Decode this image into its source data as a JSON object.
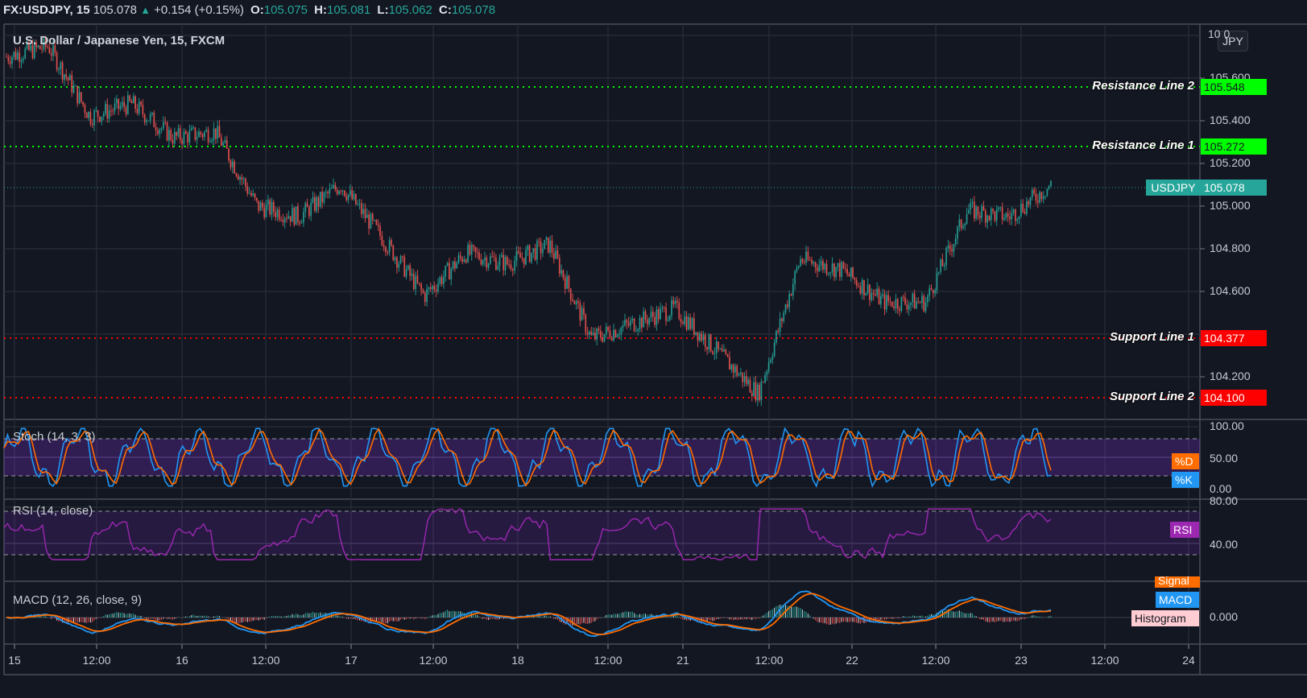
{
  "header": {
    "symbol": "FX:USDJPY, 15",
    "last": "105.078",
    "arrow": "▲",
    "change": "+0.154 (+0.15%)",
    "o_label": "O:",
    "o": "105.075",
    "h_label": "H:",
    "h": "105.081",
    "l_label": "L:",
    "l": "105.062",
    "c_label": "C:",
    "c": "105.078"
  },
  "main": {
    "title": "U.S. Dollar / Japanese Yen, 15, FXCM",
    "currency_button": "JPY",
    "price_ticks": [
      "105.600",
      "105.400",
      "105.200",
      "105.000",
      "104.800",
      "104.600",
      "104.200"
    ],
    "top_tick_partial": "10 0",
    "lines": {
      "r2": {
        "label": "Resistance Line 2",
        "value": "105.548",
        "color": "#00ff00"
      },
      "r1": {
        "label": "Resistance Line 1",
        "value": "105.272",
        "color": "#00ff00"
      },
      "s1": {
        "label": "Support Line 1",
        "value": "104.377",
        "color": "#ff0000"
      },
      "s2": {
        "label": "Support Line 2",
        "value": "104.100",
        "color": "#ff0000"
      }
    },
    "current": {
      "symbol": "USDJPY",
      "value": "105.078",
      "color": "#26a69a"
    }
  },
  "stoch": {
    "title": "Stoch (14, 3, 3)",
    "ticks": [
      "100.00",
      "50.00",
      "0.00"
    ],
    "d_label": "%D",
    "d_color": "#ff6d00",
    "k_label": "%K",
    "k_color": "#2196f3"
  },
  "rsi": {
    "title": "RSI (14, close)",
    "ticks": [
      "80.00",
      "40.00"
    ],
    "label": "RSI",
    "color": "#9c27b0"
  },
  "macd": {
    "title": "MACD (12, 26, close, 9)",
    "ticks": [
      "0.000"
    ],
    "signal_label": "Signal",
    "signal_color": "#ff6d00",
    "macd_label": "MACD",
    "macd_color": "#2196f3",
    "hist_label": "Histogram",
    "hist_color": "#ffcdd2"
  },
  "xaxis": {
    "labels": [
      "15",
      "12:00",
      "16",
      "12:00",
      "17",
      "12:00",
      "18",
      "12:00",
      "21",
      "12:00",
      "22",
      "12:00",
      "23",
      "12:00",
      "24"
    ]
  },
  "chart_data": {
    "type": "candlestick",
    "title": "U.S. Dollar / Japanese Yen, 15, FXCM",
    "xlabel": "",
    "ylabel": "JPY",
    "x_ticks": [
      "15",
      "12:00",
      "16",
      "12:00",
      "17",
      "12:00",
      "18",
      "12:00",
      "21",
      "12:00",
      "22",
      "12:00",
      "23",
      "12:00",
      "24"
    ],
    "ylim": [
      104.03,
      105.82
    ],
    "approx_close_path": {
      "x": [
        "15 00:00",
        "15 06:00",
        "15 12:00",
        "15 18:00",
        "16 00:00",
        "16 06:00",
        "16 12:00",
        "16 18:00",
        "17 00:00",
        "17 06:00",
        "17 12:00",
        "17 18:00",
        "18 00:00",
        "18 06:00",
        "18 12:00",
        "18 18:00",
        "21 00:00",
        "21 06:00",
        "21 12:00",
        "21 18:00",
        "22 00:00",
        "22 06:00",
        "22 12:00",
        "22 18:00",
        "23 00:00",
        "23 06:00"
      ],
      "values": [
        105.7,
        105.75,
        105.42,
        105.48,
        105.32,
        105.35,
        105.0,
        104.95,
        105.1,
        104.85,
        104.58,
        104.78,
        104.73,
        104.82,
        104.38,
        104.45,
        104.52,
        104.32,
        104.12,
        104.75,
        104.7,
        104.55,
        104.55,
        104.98,
        104.95,
        105.1
      ]
    },
    "horizontal_lines": [
      {
        "name": "Resistance Line 2",
        "value": 105.548
      },
      {
        "name": "Resistance Line 1",
        "value": 105.272
      },
      {
        "name": "Support Line 1",
        "value": 104.377
      },
      {
        "name": "Support Line 2",
        "value": 104.1
      }
    ],
    "last_price": 105.078,
    "indicators": [
      {
        "name": "Stoch (14, 3, 3)",
        "ylim": [
          0,
          100
        ],
        "bands": [
          20,
          80
        ],
        "series": [
          "%K",
          "%D"
        ]
      },
      {
        "name": "RSI (14, close)",
        "ylim": [
          20,
          85
        ],
        "bands": [
          30,
          70
        ],
        "last": 52
      },
      {
        "name": "MACD (12, 26, close, 9)",
        "zero": 0.0,
        "series": [
          "MACD",
          "Signal",
          "Histogram"
        ]
      }
    ]
  }
}
